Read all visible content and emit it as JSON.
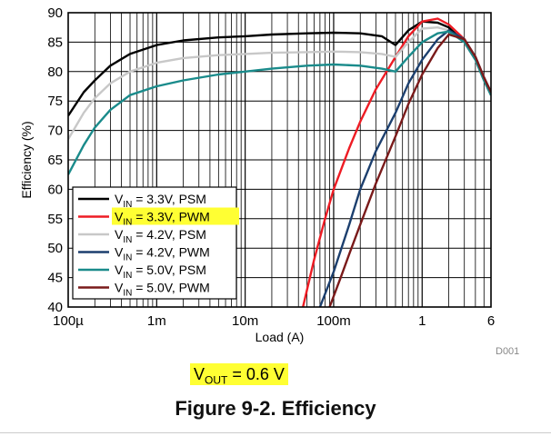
{
  "chart_data": {
    "type": "line",
    "xlabel": "Load (A)",
    "ylabel": "Efficiency (%)",
    "x_scale": "log",
    "xlim": [
      0.0001,
      6
    ],
    "ylim": [
      40,
      90
    ],
    "x_ticks": [
      {
        "value": 0.0001,
        "label": "100µ"
      },
      {
        "value": 0.001,
        "label": "1m"
      },
      {
        "value": 0.01,
        "label": "10m"
      },
      {
        "value": 0.1,
        "label": "100m"
      },
      {
        "value": 1,
        "label": "1"
      },
      {
        "value": 6,
        "label": "6"
      }
    ],
    "y_ticks": [
      40,
      45,
      50,
      55,
      60,
      65,
      70,
      75,
      80,
      85,
      90
    ],
    "grid": true,
    "legend_position": "bottom-left",
    "series": [
      {
        "sym": "V",
        "sub": "IN",
        "rest": " = 3.3V, PSM",
        "color": "#000000",
        "highlight": false,
        "x": [
          0.0001,
          0.00015,
          0.0002,
          0.0003,
          0.0005,
          0.001,
          0.002,
          0.005,
          0.01,
          0.02,
          0.05,
          0.1,
          0.2,
          0.35,
          0.5,
          0.7,
          1,
          1.5,
          2,
          3,
          4,
          5,
          6
        ],
        "y": [
          72.5,
          76.5,
          78.5,
          81,
          83,
          84.5,
          85.3,
          85.8,
          86,
          86.3,
          86.5,
          86.6,
          86.5,
          86,
          84.5,
          87,
          88.5,
          88.3,
          87.5,
          85,
          82,
          78.5,
          76
        ]
      },
      {
        "sym": "V",
        "sub": "IN",
        "rest": " = 3.3V, PWM",
        "color": "#ee1c24",
        "highlight": true,
        "x": [
          0.045,
          0.06,
          0.08,
          0.1,
          0.15,
          0.2,
          0.3,
          0.5,
          0.7,
          1,
          1.5,
          2,
          3,
          4,
          5,
          6
        ],
        "y": [
          40,
          48,
          55,
          60,
          67,
          71.5,
          77,
          82.5,
          86,
          88.5,
          89,
          88,
          85.5,
          82.5,
          79,
          76.5
        ]
      },
      {
        "sym": "V",
        "sub": "IN",
        "rest": " = 4.2V, PSM",
        "color": "#c8c8c8",
        "highlight": false,
        "x": [
          0.0001,
          0.00015,
          0.0002,
          0.0003,
          0.0005,
          0.001,
          0.002,
          0.005,
          0.01,
          0.02,
          0.05,
          0.1,
          0.2,
          0.35,
          0.5,
          0.7,
          1,
          1.5,
          2,
          3,
          4,
          5,
          6
        ],
        "y": [
          68.5,
          73,
          75.5,
          78,
          80,
          81.5,
          82.3,
          82.8,
          83,
          83.2,
          83.3,
          83.4,
          83.3,
          83,
          82.5,
          85,
          87.3,
          87.5,
          87,
          85,
          82,
          78.5,
          76
        ]
      },
      {
        "sym": "V",
        "sub": "IN",
        "rest": " = 4.2V, PWM",
        "color": "#1c3f6e",
        "highlight": false,
        "x": [
          0.07,
          0.1,
          0.15,
          0.2,
          0.3,
          0.5,
          0.7,
          1,
          1.5,
          2,
          3,
          4,
          5,
          6
        ],
        "y": [
          40,
          46,
          54,
          60,
          66.5,
          73,
          78,
          82,
          85.5,
          87,
          85.5,
          82.5,
          79,
          76.5
        ]
      },
      {
        "sym": "V",
        "sub": "IN",
        "rest": " = 5.0V, PSM",
        "color": "#1a8b8b",
        "highlight": false,
        "x": [
          0.0001,
          0.00015,
          0.0002,
          0.0003,
          0.0005,
          0.001,
          0.002,
          0.005,
          0.01,
          0.02,
          0.05,
          0.1,
          0.2,
          0.35,
          0.5,
          0.7,
          1,
          1.5,
          2,
          3,
          4,
          5,
          6
        ],
        "y": [
          62.5,
          67.5,
          70.5,
          73.5,
          76,
          77.5,
          78.5,
          79.5,
          80,
          80.5,
          81,
          81.2,
          81,
          80.5,
          80,
          82.5,
          85,
          86.5,
          86.8,
          85,
          82,
          78.5,
          76
        ]
      },
      {
        "sym": "V",
        "sub": "IN",
        "rest": " = 5.0V, PWM",
        "color": "#7a1a1a",
        "highlight": false,
        "x": [
          0.09,
          0.12,
          0.15,
          0.2,
          0.3,
          0.5,
          0.7,
          1,
          1.5,
          2,
          3,
          4,
          5,
          6
        ],
        "y": [
          40,
          45,
          49,
          54,
          61,
          69,
          74.5,
          79.5,
          84,
          86.3,
          85.5,
          82.5,
          79,
          76.5
        ]
      }
    ]
  },
  "figure": {
    "code": "D001",
    "vout": {
      "sym": "V",
      "sub": "OUT",
      "rest": " = 0.6 V"
    },
    "caption": "Figure 9-2. Efficiency"
  }
}
